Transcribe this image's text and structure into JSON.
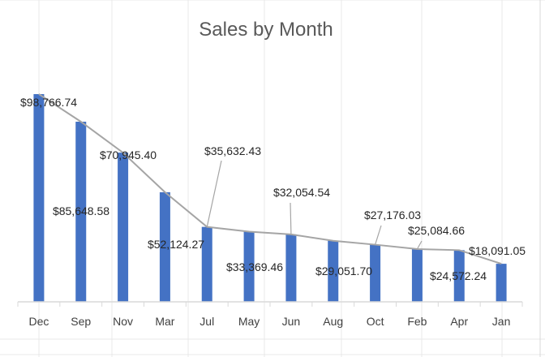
{
  "chart_data": {
    "type": "bar",
    "title": "Sales by Month",
    "xlabel": "",
    "ylabel": "",
    "ylim": [
      0,
      110000
    ],
    "grid": false,
    "legend": "none",
    "categories": [
      "Dec",
      "Sep",
      "Nov",
      "Mar",
      "Jul",
      "May",
      "Jun",
      "Aug",
      "Oct",
      "Feb",
      "Apr",
      "Jan"
    ],
    "series": [
      {
        "values": [
          98766.74,
          85648.58,
          70945.4,
          52124.27,
          35632.43,
          33369.46,
          32054.54,
          29051.7,
          27176.03,
          25084.66,
          24572.24,
          18091.05
        ],
        "data_labels": [
          "$98,766.74",
          "$85,648.58",
          "$70,945.40",
          "$52,124.27",
          "$35,632.43",
          "$33,369.46",
          "$32,054.54",
          "$29,051.70",
          "$27,176.03",
          "$25,084.66",
          "$24,572.24",
          "$18,091.05"
        ]
      }
    ],
    "colors": {
      "bar": "#4472c4",
      "line": "#a5a5a5",
      "axis": "#d9d9d9"
    }
  }
}
